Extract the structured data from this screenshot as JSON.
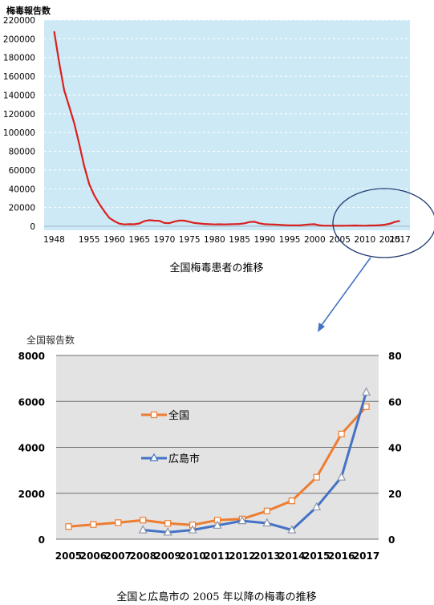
{
  "chart_data": [
    {
      "type": "line",
      "ylabel": "梅毒報告数",
      "caption": "全国梅毒患者の推移",
      "ylim": [
        0,
        220000
      ],
      "y_ticks": [
        0,
        20000,
        40000,
        60000,
        80000,
        100000,
        120000,
        140000,
        160000,
        180000,
        200000,
        220000
      ],
      "y_tick_labels": [
        "0",
        "20000",
        "40000",
        "60000",
        "80000",
        "100000",
        "120000",
        "140000",
        "160000",
        "180000",
        "200000",
        "220000"
      ],
      "xlim": [
        1946,
        2019
      ],
      "x_ticks": [
        1948,
        1955,
        1960,
        1965,
        1970,
        1975,
        1980,
        1985,
        1990,
        1995,
        2000,
        2005,
        2010,
        2015,
        2017
      ],
      "x_tick_labels": [
        "1948",
        "1955",
        "1960",
        "1965",
        "1970",
        "1975",
        "1980",
        "1985",
        "1990",
        "1995",
        "2000",
        "2005",
        "2010",
        "2015",
        "2017"
      ],
      "grid": "horizontal dashed",
      "colors": {
        "background": "#cde9f6",
        "line": "#d9201e",
        "grid": "#ffffff"
      },
      "series": [
        {
          "x": [
            1948,
            1949,
            1950,
            1951,
            1952,
            1953,
            1954,
            1955,
            1956,
            1957,
            1958,
            1959,
            1960,
            1961,
            1962,
            1963,
            1964,
            1965,
            1966,
            1967,
            1968,
            1969,
            1970,
            1971,
            1972,
            1973,
            1974,
            1975,
            1976,
            1977,
            1978,
            1979,
            1980,
            1981,
            1982,
            1983,
            1984,
            1985,
            1986,
            1987,
            1988,
            1989,
            1990,
            1991,
            1992,
            1993,
            1994,
            1995,
            1996,
            1997,
            1998,
            1999,
            2000,
            2001,
            2002,
            2003,
            2004,
            2005,
            2006,
            2007,
            2008,
            2009,
            2010,
            2011,
            2012,
            2013,
            2014,
            2015,
            2016,
            2017
          ],
          "values": [
            208000,
            175000,
            145000,
            128000,
            110000,
            88000,
            64000,
            45000,
            33000,
            24000,
            16000,
            9000,
            5500,
            2800,
            2000,
            2200,
            2100,
            3000,
            5500,
            6500,
            6000,
            5800,
            3500,
            3300,
            5000,
            6200,
            6000,
            4800,
            3500,
            3000,
            2500,
            2200,
            2000,
            2100,
            2000,
            2100,
            2300,
            2500,
            3200,
            4500,
            4800,
            3200,
            2200,
            2000,
            1800,
            1500,
            1200,
            1000,
            900,
            900,
            1500,
            2000,
            2200,
            900,
            600,
            600,
            600,
            550,
            640,
            720,
            830,
            690,
            620,
            830,
            880,
            1230,
            1670,
            2700,
            4580,
            5770
          ]
        }
      ],
      "annotation": "ellipse around 2005–2017 with arrow pointing to the detail chart below"
    },
    {
      "type": "line",
      "title": "全国報告数",
      "caption": "全国と広島市の 2005 年以降の梅毒の推移",
      "categories": [
        "2005",
        "2006",
        "2007",
        "2008",
        "2009",
        "2010",
        "2011",
        "2012",
        "2013",
        "2014",
        "2015",
        "2016",
        "2017"
      ],
      "ylim": [
        0,
        8000
      ],
      "y_ticks": [
        "0",
        "2000",
        "4000",
        "6000",
        "8000"
      ],
      "y2lim": [
        0,
        80
      ],
      "y2_ticks": [
        "0",
        "20",
        "40",
        "60",
        "80"
      ],
      "grid": "horizontal",
      "legend": "inside upper-left",
      "colors": {
        "background": "#e3e3e3",
        "grid": "#6e6e6e"
      },
      "series": [
        {
          "name": "全国",
          "axis": "left",
          "color": "#ed7d31",
          "marker": "square",
          "values": [
            550,
            640,
            720,
            830,
            690,
            620,
            830,
            880,
            1230,
            1670,
            2700,
            4580,
            5770
          ]
        },
        {
          "name": "広島市",
          "axis": "right",
          "color": "#4472c4",
          "marker": "triangle",
          "values": [
            null,
            null,
            null,
            4,
            3,
            4,
            6,
            8,
            7,
            4,
            14,
            27,
            64
          ]
        }
      ]
    }
  ]
}
